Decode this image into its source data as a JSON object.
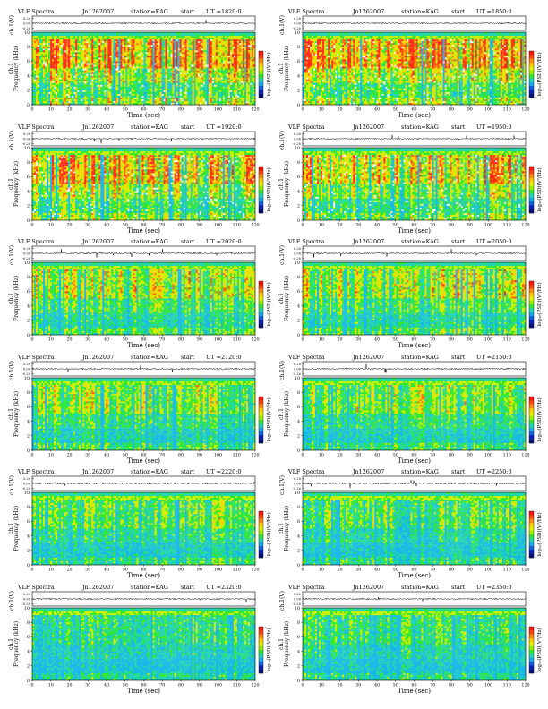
{
  "chart_data": [
    {
      "type": "heatmap",
      "title": "VLF Spectra",
      "date": "Jn1262007",
      "station": "station=KAG",
      "start_label": "start",
      "ut": "UT =1820:0",
      "trace_label": "ch.1(V)",
      "trace_ticks": [
        "0.20",
        "0.00",
        "-0.20"
      ],
      "ylabel": "Frequency (kHz)",
      "ylabel_ch": "ch.1",
      "yticks": [
        "0",
        "2",
        "4",
        "6",
        "8",
        "10"
      ],
      "xticks": [
        "0",
        "10",
        "20",
        "30",
        "40",
        "50",
        "60",
        "70",
        "80",
        "90",
        "100",
        "110",
        "120"
      ],
      "xlabel": "Time (sec)",
      "colorbar_label": "log₁₀(PSD)(V²/Hz)",
      "colorbar_ticks": [
        "-",
        "-"
      ],
      "xlim": [
        0,
        120
      ],
      "ylim": [
        0,
        10
      ],
      "intensity": 0.92
    },
    {
      "type": "heatmap",
      "title": "VLF Spectra",
      "date": "Jn1262007",
      "station": "station=KAG",
      "start_label": "start",
      "ut": "UT =1850:0",
      "trace_label": "ch.1(V)",
      "trace_ticks": [
        "0.20",
        "0.00",
        "-0.20"
      ],
      "ylabel": "Frequency (kHz)",
      "ylabel_ch": "ch.1",
      "yticks": [
        "0",
        "2",
        "4",
        "6",
        "8",
        "10"
      ],
      "xticks": [
        "0",
        "10",
        "20",
        "30",
        "40",
        "50",
        "60",
        "70",
        "80",
        "90",
        "100",
        "110",
        "120"
      ],
      "xlabel": "Time (sec)",
      "colorbar_label": "log₁₀(PSD)(V²/Hz)",
      "colorbar_ticks": [
        "-",
        "-"
      ],
      "xlim": [
        0,
        120
      ],
      "ylim": [
        0,
        10
      ],
      "intensity": 0.9
    },
    {
      "type": "heatmap",
      "title": "VLF Spectra",
      "date": "Jn1262007",
      "station": "station=KAG",
      "start_label": "start",
      "ut": "UT =1920:0",
      "trace_label": "ch.1(V)",
      "trace_ticks": [
        "0.20",
        "0.00",
        "-0.20"
      ],
      "ylabel": "Frequency (kHz)",
      "ylabel_ch": "ch.1",
      "yticks": [
        "0",
        "2",
        "4",
        "6",
        "8",
        "10"
      ],
      "xticks": [
        "0",
        "10",
        "20",
        "30",
        "40",
        "50",
        "60",
        "70",
        "80",
        "90",
        "100",
        "110",
        "120"
      ],
      "xlabel": "Time (sec)",
      "colorbar_label": "log₁₀(PSD)(V²/Hz)",
      "colorbar_ticks": [
        "-",
        "-"
      ],
      "xlim": [
        0,
        120
      ],
      "ylim": [
        0,
        10
      ],
      "intensity": 0.82
    },
    {
      "type": "heatmap",
      "title": "VLF Spectra",
      "date": "Jn1262007",
      "station": "station=KAG",
      "start_label": "start",
      "ut": "UT =1950:0",
      "trace_label": "ch.1(V)",
      "trace_ticks": [
        "0.20",
        "0.00",
        "-0.20"
      ],
      "ylabel": "Frequency (kHz)",
      "ylabel_ch": "ch.1",
      "yticks": [
        "0",
        "2",
        "4",
        "6",
        "8",
        "10"
      ],
      "xticks": [
        "0",
        "10",
        "20",
        "30",
        "40",
        "50",
        "60",
        "70",
        "80",
        "90",
        "100",
        "110",
        "120"
      ],
      "xlabel": "Time (sec)",
      "colorbar_label": "log₁₀(PSD)(V²/Hz)",
      "colorbar_ticks": [
        "-",
        "-"
      ],
      "xlim": [
        0,
        120
      ],
      "ylim": [
        0,
        10
      ],
      "intensity": 0.8
    },
    {
      "type": "heatmap",
      "title": "VLF Spectra",
      "date": "Jn1262007",
      "station": "station=KAG",
      "start_label": "start",
      "ut": "UT =2020:0",
      "trace_label": "ch.1(V)",
      "trace_ticks": [
        "0.20",
        "0.00",
        "-0.20"
      ],
      "ylabel": "Frequency (kHz)",
      "ylabel_ch": "ch.1",
      "yticks": [
        "0",
        "2",
        "4",
        "6",
        "8",
        "10"
      ],
      "xticks": [
        "0",
        "10",
        "20",
        "30",
        "40",
        "50",
        "60",
        "70",
        "80",
        "90",
        "100",
        "110",
        "120"
      ],
      "xlabel": "Time (sec)",
      "colorbar_label": "log₁₀(PSD)(V²/Hz)",
      "colorbar_ticks": [
        "-",
        "-"
      ],
      "xlim": [
        0,
        120
      ],
      "ylim": [
        0,
        10
      ],
      "intensity": 0.6
    },
    {
      "type": "heatmap",
      "title": "VLF Spectra",
      "date": "Jn1262007",
      "station": "station=KAG",
      "start_label": "start",
      "ut": "UT =2050:0",
      "trace_label": "ch.1(V)",
      "trace_ticks": [
        "0.20",
        "0.00",
        "-0.20"
      ],
      "ylabel": "Frequency (kHz)",
      "ylabel_ch": "ch.1",
      "yticks": [
        "0",
        "2",
        "4",
        "6",
        "8",
        "10"
      ],
      "xticks": [
        "0",
        "10",
        "20",
        "30",
        "40",
        "50",
        "60",
        "70",
        "80",
        "90",
        "100",
        "110",
        "120"
      ],
      "xlabel": "Time (sec)",
      "colorbar_label": "log₁₀(PSD)(V²/Hz)",
      "colorbar_ticks": [
        "-",
        "-"
      ],
      "xlim": [
        0,
        120
      ],
      "ylim": [
        0,
        10
      ],
      "intensity": 0.58
    },
    {
      "type": "heatmap",
      "title": "VLF Spectra",
      "date": "Jn1262007",
      "station": "station=KAG",
      "start_label": "start",
      "ut": "UT =2120:0",
      "trace_label": "ch.1(V)",
      "trace_ticks": [
        "0.20",
        "0.00",
        "-0.20"
      ],
      "ylabel": "Frequency (kHz)",
      "ylabel_ch": "ch.1",
      "yticks": [
        "0",
        "2",
        "4",
        "6",
        "8",
        "10"
      ],
      "xticks": [
        "0",
        "10",
        "20",
        "30",
        "40",
        "50",
        "60",
        "70",
        "80",
        "90",
        "100",
        "110",
        "120"
      ],
      "xlabel": "Time (sec)",
      "colorbar_label": "log₁₀(PSD)(V²/Hz)",
      "colorbar_ticks": [
        "-",
        "-"
      ],
      "xlim": [
        0,
        120
      ],
      "ylim": [
        0,
        10
      ],
      "intensity": 0.5
    },
    {
      "type": "heatmap",
      "title": "VLF Spectra",
      "date": "Jn1262007",
      "station": "station=KAG",
      "start_label": "start",
      "ut": "UT =2150:0",
      "trace_label": "ch.1(V)",
      "trace_ticks": [
        "0.20",
        "0.00",
        "-0.20"
      ],
      "ylabel": "Frequency (kHz)",
      "ylabel_ch": "ch.1",
      "yticks": [
        "0",
        "2",
        "4",
        "6",
        "8",
        "10"
      ],
      "xticks": [
        "0",
        "10",
        "20",
        "30",
        "40",
        "50",
        "60",
        "70",
        "80",
        "90",
        "100",
        "110",
        "120"
      ],
      "xlabel": "Time (sec)",
      "colorbar_label": "log₁₀(PSD)(V²/Hz)",
      "colorbar_ticks": [
        "-",
        "-"
      ],
      "xlim": [
        0,
        120
      ],
      "ylim": [
        0,
        10
      ],
      "intensity": 0.48
    },
    {
      "type": "heatmap",
      "title": "VLF Spectra",
      "date": "Jn1262007",
      "station": "station=KAG",
      "start_label": "start",
      "ut": "UT =2220:0",
      "trace_label": "ch.1(V)",
      "trace_ticks": [
        "0.20",
        "0.00",
        "-0.20"
      ],
      "ylabel": "Frequency (kHz)",
      "ylabel_ch": "ch.1",
      "yticks": [
        "0",
        "2",
        "4",
        "6",
        "8",
        "10"
      ],
      "xticks": [
        "0",
        "10",
        "20",
        "30",
        "40",
        "50",
        "60",
        "70",
        "80",
        "90",
        "100",
        "110",
        "120"
      ],
      "xlabel": "Time (sec)",
      "colorbar_label": "log₁₀(PSD)(V²/Hz)",
      "colorbar_ticks": [
        "-",
        "-"
      ],
      "xlim": [
        0,
        120
      ],
      "ylim": [
        0,
        10
      ],
      "intensity": 0.4
    },
    {
      "type": "heatmap",
      "title": "VLF Spectra",
      "date": "Jn1262007",
      "station": "station=KAG",
      "start_label": "start",
      "ut": "UT =2250:0",
      "trace_label": "ch.1(V)",
      "trace_ticks": [
        "0.20",
        "0.00",
        "-0.20"
      ],
      "ylabel": "Frequency (kHz)",
      "ylabel_ch": "ch.1",
      "yticks": [
        "0",
        "2",
        "4",
        "6",
        "8",
        "10"
      ],
      "xticks": [
        "0",
        "10",
        "20",
        "30",
        "40",
        "50",
        "60",
        "70",
        "80",
        "90",
        "100",
        "110",
        "120"
      ],
      "xlabel": "Time (sec)",
      "colorbar_label": "log₁₀(PSD)(V²/Hz)",
      "colorbar_ticks": [
        "-",
        "-"
      ],
      "xlim": [
        0,
        120
      ],
      "ylim": [
        0,
        10
      ],
      "intensity": 0.38
    },
    {
      "type": "heatmap",
      "title": "VLF Spectra",
      "date": "Jn1262007",
      "station": "station=KAG",
      "start_label": "start",
      "ut": "UT =2320:0",
      "trace_label": "ch.1(V)",
      "trace_ticks": [
        "0.20",
        "0.00",
        "-0.20"
      ],
      "ylabel": "Frequency (kHz)",
      "ylabel_ch": "ch.1",
      "yticks": [
        "0",
        "2",
        "4",
        "6",
        "8",
        "10"
      ],
      "xticks": [
        "0",
        "10",
        "20",
        "30",
        "40",
        "50",
        "60",
        "70",
        "80",
        "90",
        "100",
        "110",
        "120"
      ],
      "xlabel": "Time (sec)",
      "colorbar_label": "log₁₀(PSD)(V²/Hz)",
      "colorbar_ticks": [
        "-",
        "-"
      ],
      "xlim": [
        0,
        120
      ],
      "ylim": [
        0,
        10
      ],
      "intensity": 0.3
    },
    {
      "type": "heatmap",
      "title": "VLF Spectra",
      "date": "Jn1262007",
      "station": "station=KAG",
      "start_label": "start",
      "ut": "UT =2350:0",
      "trace_label": "ch.1(V)",
      "trace_ticks": [
        "0.20",
        "0.00",
        "-0.20"
      ],
      "ylabel": "Frequency (kHz)",
      "ylabel_ch": "ch.1",
      "yticks": [
        "0",
        "2",
        "4",
        "6",
        "8",
        "10"
      ],
      "xticks": [
        "0",
        "10",
        "20",
        "30",
        "40",
        "50",
        "60",
        "70",
        "80",
        "90",
        "100",
        "110",
        "120"
      ],
      "xlabel": "Time (sec)",
      "colorbar_label": "log₁₀(PSD)(V²/Hz)",
      "colorbar_ticks": [
        "-",
        "-"
      ],
      "xlim": [
        0,
        120
      ],
      "ylim": [
        0,
        10
      ],
      "intensity": 0.3
    }
  ]
}
